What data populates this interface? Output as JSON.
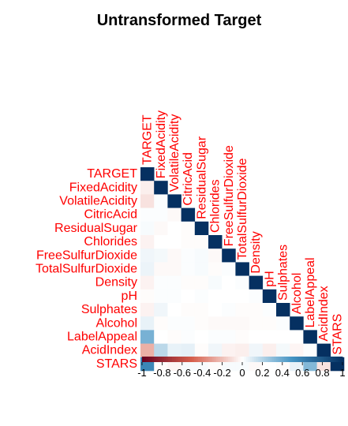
{
  "chart_data": {
    "type": "heatmap",
    "subtype": "lower-triangle correlation matrix",
    "title": "Untransformed Target",
    "variables": [
      "TARGET",
      "FixedAcidity",
      "VolatileAcidity",
      "CitricAcid",
      "ResidualSugar",
      "Chlorides",
      "FreeSulfurDioxide",
      "TotalSulfurDioxide",
      "Density",
      "pH",
      "Sulphates",
      "Alcohol",
      "LabelAppeal",
      "AcidIndex",
      "STARS"
    ],
    "matrix": [
      [
        1.0
      ],
      [
        -0.05,
        1.0
      ],
      [
        -0.09,
        0.01,
        1.0
      ],
      [
        0.01,
        0.01,
        -0.02,
        1.0
      ],
      [
        0.02,
        -0.02,
        0.0,
        -0.01,
        1.0
      ],
      [
        -0.04,
        0.0,
        0.0,
        -0.01,
        -0.01,
        1.0
      ],
      [
        0.04,
        0.03,
        -0.02,
        0.01,
        0.02,
        -0.02,
        1.0
      ],
      [
        0.05,
        -0.02,
        -0.02,
        0.01,
        0.02,
        -0.01,
        0.01,
        1.0
      ],
      [
        -0.04,
        0.01,
        0.01,
        -0.01,
        -0.01,
        0.02,
        0.0,
        0.01,
        1.0
      ],
      [
        -0.01,
        0.01,
        0.01,
        0.0,
        0.01,
        0.0,
        0.0,
        0.0,
        0.01,
        1.0
      ],
      [
        -0.04,
        0.04,
        0.0,
        -0.01,
        -0.01,
        0.0,
        0.01,
        -0.01,
        -0.01,
        0.01,
        1.0
      ],
      [
        0.06,
        -0.01,
        0.01,
        0.01,
        -0.01,
        -0.02,
        -0.02,
        -0.02,
        -0.01,
        -0.01,
        0.01,
        1.0
      ],
      [
        0.36,
        0.0,
        -0.01,
        0.01,
        0.0,
        0.01,
        0.01,
        -0.01,
        0.0,
        0.0,
        0.0,
        0.0,
        1.0
      ],
      [
        -0.25,
        0.18,
        0.06,
        0.07,
        -0.01,
        0.04,
        -0.04,
        -0.05,
        0.04,
        -0.05,
        0.03,
        -0.03,
        0.01,
        1.0
      ],
      [
        0.56,
        -0.01,
        -0.03,
        0.02,
        0.02,
        -0.01,
        0.02,
        0.02,
        -0.02,
        0.0,
        -0.01,
        0.06,
        0.33,
        -0.09,
        1.0
      ]
    ],
    "color_scale": {
      "domain": [
        -1,
        1
      ],
      "low": "#67001f",
      "mid": "#ffffff",
      "high": "#053061"
    },
    "colorbar_ticks": [
      "-1",
      "-0.8",
      "-0.6",
      "-0.4",
      "-0.2",
      "0",
      "0.2",
      "0.4",
      "0.6",
      "0.8",
      "1"
    ],
    "label_color": "#ff0000",
    "grid": false,
    "legend": "bottom"
  }
}
